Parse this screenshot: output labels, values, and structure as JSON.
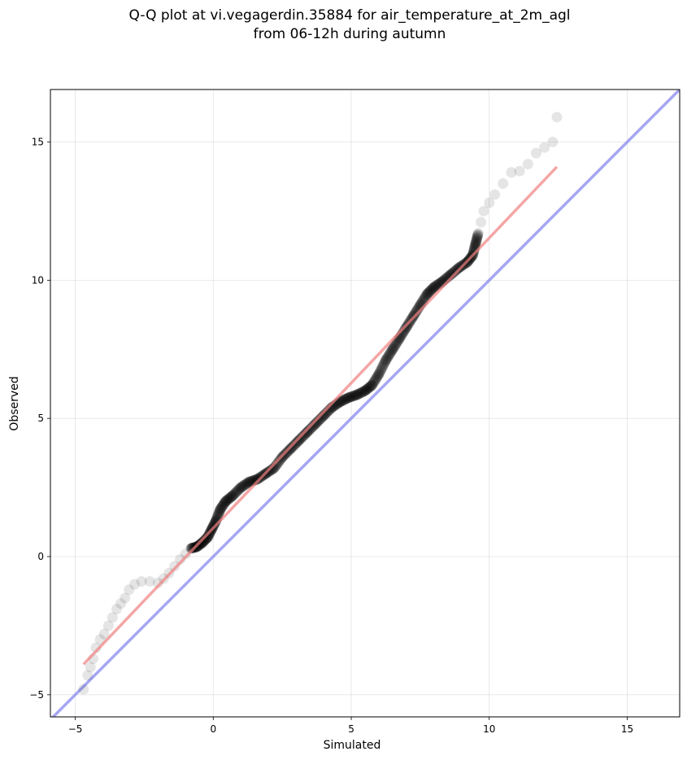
{
  "chart_data": {
    "type": "scatter",
    "title": [
      "Q-Q plot at vi.vegagerdin.35884 for air_temperature_at_2m_agl",
      "from 06-12h during autumn"
    ],
    "xlabel": "Simulated",
    "ylabel": "Observed",
    "xlim": [
      -5.9,
      16.9
    ],
    "ylim": [
      -5.8,
      16.9
    ],
    "xticks": [
      -5,
      0,
      5,
      10,
      15
    ],
    "yticks": [
      -5,
      0,
      5,
      10,
      15
    ],
    "xtick_labels": [
      "−5",
      "0",
      "5",
      "10",
      "15"
    ],
    "ytick_labels": [
      "−5",
      "0",
      "5",
      "10",
      "15"
    ],
    "grid": true,
    "points": {
      "color": "#000000",
      "x": [
        -4.7,
        -4.55,
        -4.45,
        -4.35,
        -4.25,
        -4.1,
        -3.95,
        -3.8,
        -3.65,
        -3.5,
        -3.35,
        -3.2,
        -3.05,
        -2.85,
        -2.6,
        -2.3,
        -2.0,
        -1.8,
        -1.6,
        -1.4,
        -1.2,
        -1.0,
        -0.8,
        -0.6,
        -0.4,
        -0.2,
        -0.05,
        0.1,
        0.25,
        0.45,
        0.7,
        1.0,
        1.3,
        1.6,
        1.9,
        2.2,
        2.5,
        2.8,
        3.1,
        3.4,
        3.7,
        4.0,
        4.3,
        4.6,
        4.9,
        5.2,
        5.5,
        5.75,
        6.0,
        6.25,
        6.5,
        6.75,
        7.0,
        7.25,
        7.5,
        7.75,
        8.0,
        8.3,
        8.6,
        8.9,
        9.2,
        9.4,
        9.5,
        9.6,
        9.7,
        9.8,
        10.0,
        10.2,
        10.5,
        10.8,
        11.1,
        11.4,
        11.7,
        12.0,
        12.3,
        12.45
      ],
      "y": [
        -4.8,
        -4.3,
        -4.0,
        -3.7,
        -3.3,
        -3.0,
        -2.8,
        -2.5,
        -2.2,
        -1.9,
        -1.7,
        -1.5,
        -1.2,
        -1.0,
        -0.9,
        -0.9,
        -0.95,
        -0.8,
        -0.6,
        -0.35,
        -0.1,
        0.1,
        0.3,
        0.35,
        0.5,
        0.7,
        1.0,
        1.3,
        1.7,
        2.0,
        2.2,
        2.5,
        2.7,
        2.8,
        3.0,
        3.2,
        3.6,
        3.9,
        4.2,
        4.5,
        4.8,
        5.1,
        5.4,
        5.6,
        5.75,
        5.85,
        6.0,
        6.2,
        6.6,
        7.1,
        7.5,
        7.9,
        8.3,
        8.7,
        9.1,
        9.5,
        9.75,
        9.95,
        10.2,
        10.45,
        10.65,
        10.9,
        11.3,
        11.7,
        12.1,
        12.5,
        12.8,
        13.1,
        13.5,
        13.9,
        13.95,
        14.2,
        14.6,
        14.8,
        15.0,
        15.9
      ]
    },
    "fit_line": {
      "color": "#f08080",
      "x": [
        -4.7,
        12.45
      ],
      "y": [
        -3.9,
        14.1
      ]
    },
    "identity_line": {
      "color": "#8080ee",
      "x": [
        -5.9,
        16.9
      ],
      "y": [
        -5.9,
        16.9
      ]
    }
  }
}
